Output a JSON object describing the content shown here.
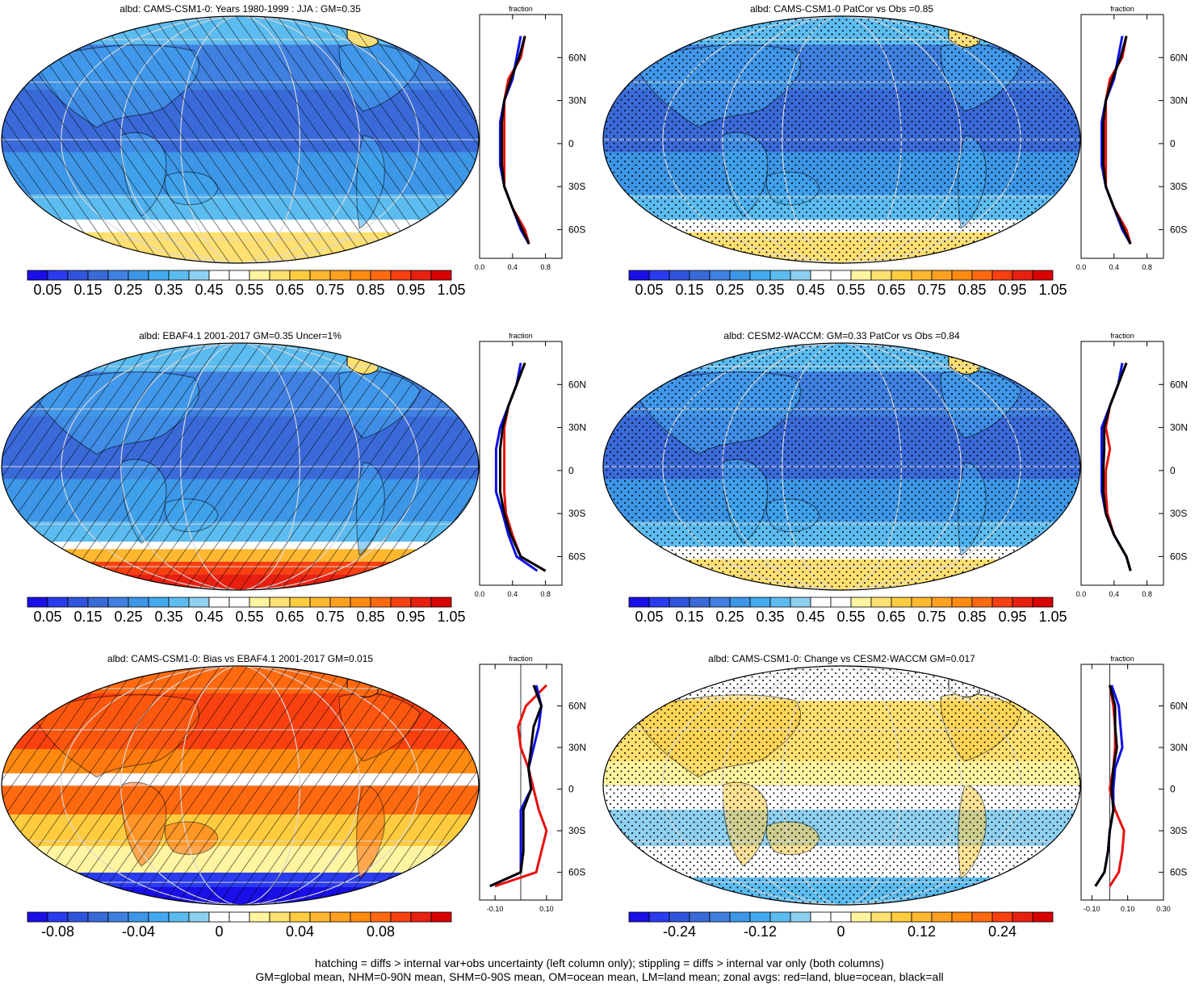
{
  "panels": [
    {
      "title": "albd: CAMS-CSM1-0: Years 1980-1999 : JJA : GM=0.35",
      "map_style": "abs",
      "hatch": "slash",
      "stipple": false,
      "zonal_x_ticks": [
        "0.0",
        "0.4",
        "0.8"
      ],
      "zonal_xlim": [
        0,
        1
      ],
      "colorbar": "abs"
    },
    {
      "title": "albd: CAMS-CSM1-0 PatCor vs Obs =0.85",
      "map_style": "abs",
      "hatch": "none",
      "stipple": true,
      "zonal_x_ticks": [
        "0.0",
        "0.4",
        "0.8"
      ],
      "zonal_xlim": [
        0,
        1
      ],
      "colorbar": "abs"
    },
    {
      "title": "albd: EBAF4.1 2001-2017 GM=0.35 Uncer=1%",
      "map_style": "abs_obs",
      "hatch": "backslash",
      "stipple": false,
      "zonal_x_ticks": [
        "0.0",
        "0.4",
        "0.8"
      ],
      "zonal_xlim": [
        0,
        1
      ],
      "colorbar": "abs"
    },
    {
      "title": "albd: CESM2-WACCM: GM=0.33 PatCor vs Obs =0.84",
      "map_style": "abs",
      "hatch": "none",
      "stipple": true,
      "zonal_x_ticks": [
        "0.0",
        "0.4",
        "0.8"
      ],
      "zonal_xlim": [
        0,
        1
      ],
      "colorbar": "abs"
    },
    {
      "title": "albd: CAMS-CSM1-0: Bias vs EBAF4.1 2001-2017 GM=0.015",
      "map_style": "bias",
      "hatch": "backslash",
      "stipple": false,
      "zonal_x_ticks": [
        "-0.10",
        "0.10"
      ],
      "zonal_xlim": [
        -0.16,
        0.16
      ],
      "colorbar": "bias"
    },
    {
      "title": "albd: CAMS-CSM1-0: Change vs CESM2-WACCM GM=0.017",
      "map_style": "change",
      "hatch": "none",
      "stipple": true,
      "zonal_x_ticks": [
        "-0.10",
        "0.10",
        "0.30"
      ],
      "zonal_xlim": [
        -0.16,
        0.3
      ],
      "colorbar": "change"
    }
  ],
  "zonal_axis": {
    "title": "fraction",
    "lat_ticks": [
      "60N",
      "30N",
      "0",
      "30S",
      "60S"
    ]
  },
  "colorbars": {
    "abs": {
      "colors": [
        "#1a0fe6",
        "#2a3bf0",
        "#3055dc",
        "#3a6ad8",
        "#3f80e0",
        "#3d96e6",
        "#44aaf0",
        "#5cbcf0",
        "#8ed0f0",
        "#ffffff",
        "#ffffff",
        "#fff4a0",
        "#ffe070",
        "#ffcc40",
        "#ffb830",
        "#ffa020",
        "#ff8a10",
        "#ff6a10",
        "#f84010",
        "#e82010",
        "#d80000"
      ],
      "labels": [
        "0.05",
        "0.15",
        "0.25",
        "0.35",
        "0.45",
        "0.55",
        "0.65",
        "0.75",
        "0.85",
        "0.95",
        "1.05"
      ]
    },
    "bias": {
      "colors": [
        "#1a0fe6",
        "#2a3bf0",
        "#3055dc",
        "#3a6ad8",
        "#3f80e0",
        "#3d96e6",
        "#44aaf0",
        "#5cbcf0",
        "#8ed0f0",
        "#ffffff",
        "#ffffff",
        "#fff4a0",
        "#ffe070",
        "#ffcc40",
        "#ffb830",
        "#ffa020",
        "#ff8a10",
        "#ff6a10",
        "#f84010",
        "#e82010",
        "#d80000"
      ],
      "labels": [
        "-0.08",
        "-0.04",
        "0",
        "0.04",
        "0.08"
      ]
    },
    "change": {
      "colors": [
        "#1a0fe6",
        "#2a3bf0",
        "#3055dc",
        "#3a6ad8",
        "#3f80e0",
        "#3d96e6",
        "#44aaf0",
        "#5cbcf0",
        "#8ed0f0",
        "#ffffff",
        "#ffffff",
        "#fff4a0",
        "#ffe070",
        "#ffcc40",
        "#ffb830",
        "#ffa020",
        "#ff8a10",
        "#ff6a10",
        "#f84010",
        "#e82010",
        "#d80000"
      ],
      "labels": [
        "-0.24",
        "-0.12",
        "0",
        "0.12",
        "0.24"
      ]
    }
  },
  "footer": {
    "line1": "hatching = diffs > internal var+obs uncertainty (left column only); stippling = diffs > internal var only (both columns)",
    "line2": "GM=global mean, NHM=0-90N mean, SHM=0-90S mean, OM=ocean mean, LM=land mean; zonal avgs: red=land, blue=ocean, black=all"
  },
  "chart_data": [
    {
      "type": "line",
      "title": "albd: CAMS-CSM1-0: Years 1980-1999 : JJA : GM=0.35",
      "xlabel": "fraction",
      "xlim": [
        0,
        1
      ],
      "y_ticks": [
        "60N",
        "30N",
        "0",
        "30S",
        "60S"
      ],
      "series": [
        {
          "name": "land",
          "color": "red",
          "lat": [
            75,
            60,
            45,
            30,
            15,
            0,
            -15,
            -30,
            -45,
            -60,
            -70
          ],
          "values": [
            0.55,
            0.5,
            0.35,
            0.3,
            0.3,
            0.3,
            0.3,
            0.3,
            0.4,
            0.55,
            0.6
          ]
        },
        {
          "name": "ocean",
          "color": "blue",
          "lat": [
            75,
            60,
            45,
            30,
            15,
            0,
            -15,
            -30,
            -45,
            -60,
            -70
          ],
          "values": [
            0.5,
            0.45,
            0.4,
            0.3,
            0.25,
            0.25,
            0.25,
            0.3,
            0.4,
            0.5,
            0.6
          ]
        },
        {
          "name": "all",
          "color": "black",
          "lat": [
            75,
            60,
            45,
            30,
            15,
            0,
            -15,
            -30,
            -45,
            -60,
            -70
          ],
          "values": [
            0.55,
            0.48,
            0.38,
            0.3,
            0.27,
            0.27,
            0.27,
            0.3,
            0.4,
            0.52,
            0.6
          ]
        }
      ]
    },
    {
      "type": "line",
      "title": "albd: CAMS-CSM1-0 PatCor vs Obs =0.85",
      "xlabel": "fraction",
      "xlim": [
        0,
        1
      ],
      "y_ticks": [
        "60N",
        "30N",
        "0",
        "30S",
        "60S"
      ],
      "series": [
        {
          "name": "land",
          "color": "red",
          "lat": [
            75,
            60,
            45,
            30,
            15,
            0,
            -15,
            -30,
            -45,
            -60,
            -70
          ],
          "values": [
            0.55,
            0.5,
            0.35,
            0.3,
            0.3,
            0.3,
            0.3,
            0.3,
            0.4,
            0.55,
            0.6
          ]
        },
        {
          "name": "ocean",
          "color": "blue",
          "lat": [
            75,
            60,
            45,
            30,
            15,
            0,
            -15,
            -30,
            -45,
            -60,
            -70
          ],
          "values": [
            0.5,
            0.45,
            0.4,
            0.3,
            0.25,
            0.25,
            0.25,
            0.3,
            0.4,
            0.5,
            0.6
          ]
        },
        {
          "name": "all",
          "color": "black",
          "lat": [
            75,
            60,
            45,
            30,
            15,
            0,
            -15,
            -30,
            -45,
            -60,
            -70
          ],
          "values": [
            0.55,
            0.48,
            0.38,
            0.3,
            0.27,
            0.27,
            0.27,
            0.3,
            0.4,
            0.52,
            0.6
          ]
        }
      ]
    },
    {
      "type": "line",
      "title": "albd: EBAF4.1 2001-2017 GM=0.35 Uncer=1%",
      "xlabel": "fraction",
      "xlim": [
        0,
        1
      ],
      "y_ticks": [
        "60N",
        "30N",
        "0",
        "30S",
        "60S"
      ],
      "series": [
        {
          "name": "land",
          "color": "red",
          "lat": [
            75,
            60,
            45,
            30,
            15,
            0,
            -15,
            -30,
            -45,
            -60,
            -70
          ],
          "values": [
            0.55,
            0.45,
            0.35,
            0.3,
            0.3,
            0.3,
            0.3,
            0.32,
            0.4,
            0.5,
            0.8
          ]
        },
        {
          "name": "ocean",
          "color": "blue",
          "lat": [
            75,
            60,
            45,
            30,
            15,
            0,
            -15,
            -30,
            -45,
            -60,
            -70
          ],
          "values": [
            0.5,
            0.45,
            0.35,
            0.25,
            0.2,
            0.2,
            0.2,
            0.28,
            0.35,
            0.45,
            0.7
          ]
        },
        {
          "name": "all",
          "color": "black",
          "lat": [
            75,
            60,
            45,
            30,
            15,
            0,
            -15,
            -30,
            -45,
            -60,
            -70
          ],
          "values": [
            0.55,
            0.45,
            0.35,
            0.28,
            0.25,
            0.25,
            0.25,
            0.3,
            0.38,
            0.5,
            0.8
          ]
        }
      ]
    },
    {
      "type": "line",
      "title": "albd: CESM2-WACCM: GM=0.33 PatCor vs Obs =0.84",
      "xlabel": "fraction",
      "xlim": [
        0,
        1
      ],
      "y_ticks": [
        "60N",
        "30N",
        "0",
        "30S",
        "60S"
      ],
      "series": [
        {
          "name": "land",
          "color": "red",
          "lat": [
            75,
            60,
            45,
            30,
            15,
            0,
            -15,
            -30,
            -45,
            -60,
            -70
          ],
          "values": [
            0.55,
            0.45,
            0.35,
            0.3,
            0.35,
            0.3,
            0.3,
            0.32,
            0.4,
            0.55,
            0.6
          ]
        },
        {
          "name": "ocean",
          "color": "blue",
          "lat": [
            75,
            60,
            45,
            30,
            15,
            0,
            -15,
            -30,
            -45,
            -60,
            -70
          ],
          "values": [
            0.5,
            0.45,
            0.35,
            0.25,
            0.25,
            0.25,
            0.25,
            0.3,
            0.4,
            0.55,
            0.6
          ]
        },
        {
          "name": "all",
          "color": "black",
          "lat": [
            75,
            60,
            45,
            30,
            15,
            0,
            -15,
            -30,
            -45,
            -60,
            -70
          ],
          "values": [
            0.55,
            0.45,
            0.35,
            0.28,
            0.28,
            0.27,
            0.27,
            0.3,
            0.4,
            0.55,
            0.6
          ]
        }
      ]
    },
    {
      "type": "line",
      "title": "albd: CAMS-CSM1-0: Bias vs EBAF4.1 2001-2017 GM=0.015",
      "xlabel": "fraction",
      "xlim": [
        -0.16,
        0.16
      ],
      "y_ticks": [
        "60N",
        "30N",
        "0",
        "30S",
        "60S"
      ],
      "series": [
        {
          "name": "land",
          "color": "red",
          "lat": [
            75,
            60,
            45,
            30,
            15,
            0,
            -15,
            -30,
            -45,
            -60,
            -70
          ],
          "values": [
            0.1,
            0.02,
            -0.01,
            0.0,
            0.03,
            0.05,
            0.07,
            0.1,
            0.08,
            0.06,
            -0.1
          ]
        },
        {
          "name": "ocean",
          "color": "blue",
          "lat": [
            75,
            60,
            45,
            30,
            15,
            0,
            -15,
            -30,
            -45,
            -60,
            -70
          ],
          "values": [
            0.06,
            0.08,
            0.07,
            0.05,
            0.03,
            0.04,
            0.0,
            0.0,
            0.0,
            0.0,
            -0.12
          ]
        },
        {
          "name": "all",
          "color": "black",
          "lat": [
            75,
            60,
            45,
            30,
            15,
            0,
            -15,
            -30,
            -45,
            -60,
            -70
          ],
          "values": [
            0.05,
            0.08,
            0.05,
            0.04,
            0.03,
            0.04,
            0.01,
            0.01,
            0.01,
            0.0,
            -0.12
          ]
        }
      ]
    },
    {
      "type": "line",
      "title": "albd: CAMS-CSM1-0: Change vs CESM2-WACCM GM=0.017",
      "xlabel": "fraction",
      "xlim": [
        -0.16,
        0.3
      ],
      "y_ticks": [
        "60N",
        "30N",
        "0",
        "30S",
        "60S"
      ],
      "series": [
        {
          "name": "land",
          "color": "red",
          "lat": [
            75,
            60,
            45,
            30,
            15,
            0,
            -15,
            -30,
            -45,
            -60,
            -70
          ],
          "values": [
            0.0,
            0.02,
            0.03,
            0.03,
            0.02,
            0.0,
            0.03,
            0.08,
            0.07,
            0.05,
            0.0
          ]
        },
        {
          "name": "ocean",
          "color": "blue",
          "lat": [
            75,
            60,
            45,
            30,
            15,
            0,
            -15,
            -30,
            -45,
            -60,
            -70
          ],
          "values": [
            0.01,
            0.05,
            0.06,
            0.07,
            0.03,
            0.02,
            0.02,
            0.0,
            -0.01,
            -0.03,
            -0.08
          ]
        },
        {
          "name": "all",
          "color": "black",
          "lat": [
            75,
            60,
            45,
            30,
            15,
            0,
            -15,
            -30,
            -45,
            -60,
            -70
          ],
          "values": [
            0.0,
            0.03,
            0.03,
            0.04,
            0.02,
            0.01,
            0.02,
            0.0,
            -0.01,
            -0.03,
            -0.08
          ]
        }
      ]
    }
  ]
}
